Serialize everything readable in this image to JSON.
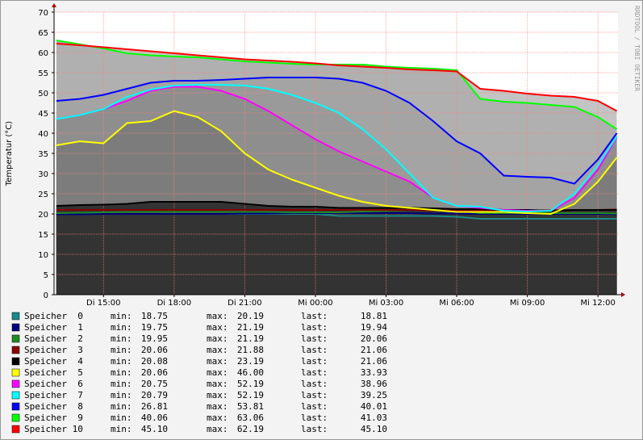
{
  "chart_data": {
    "type": "line",
    "y_label": "Temperatur (°C)",
    "watermark": "RRDTOOL / TOBI OETIKER",
    "x": [
      13,
      14,
      15,
      16,
      17,
      18,
      19,
      20,
      21,
      22,
      23,
      24,
      25,
      26,
      27,
      28,
      29,
      30,
      31,
      32,
      33,
      34,
      35,
      36,
      36.8
    ],
    "xlim": [
      12.9,
      36.85
    ],
    "xticks": [
      {
        "value": 15,
        "label": "Di 15:00"
      },
      {
        "value": 18,
        "label": "Di 18:00"
      },
      {
        "value": 21,
        "label": "Di 21:00"
      },
      {
        "value": 24,
        "label": "Mi 00:00"
      },
      {
        "value": 27,
        "label": "Mi 03:00"
      },
      {
        "value": 30,
        "label": "Mi 06:00"
      },
      {
        "value": 33,
        "label": "Mi 09:00"
      },
      {
        "value": 36,
        "label": "Mi 12:00"
      }
    ],
    "ylim": [
      0,
      70
    ],
    "yticks": [
      0,
      5,
      10,
      15,
      20,
      25,
      30,
      35,
      40,
      45,
      50,
      55,
      60,
      65,
      70
    ],
    "grid": true,
    "legend_labels": {
      "min": "min:",
      "max": "max:",
      "last": "last:"
    },
    "series": [
      {
        "name": "Speicher  0",
        "color": "#1a8a8a",
        "fill": "#333333",
        "min": 18.75,
        "max": 20.19,
        "last": 18.81,
        "values": [
          20,
          20,
          20,
          20,
          20,
          20,
          20,
          20,
          20,
          20,
          20,
          20,
          19.5,
          19.5,
          19.5,
          19.5,
          19.5,
          19.3,
          18.8,
          18.8,
          18.8,
          18.8,
          18.8,
          18.8,
          18.8
        ]
      },
      {
        "name": "Speicher  1",
        "color": "#000080",
        "fill": "#333333",
        "min": 19.75,
        "max": 21.19,
        "last": 19.94,
        "values": [
          19.9,
          19.9,
          20,
          20,
          20,
          20,
          20,
          20,
          20.1,
          20.1,
          20.2,
          20.2,
          20.2,
          20.2,
          20.2,
          20.2,
          20.1,
          20.1,
          20,
          20,
          20,
          20,
          20,
          20,
          19.9
        ]
      },
      {
        "name": "Speicher  2",
        "color": "#228b22",
        "fill": "#333333",
        "min": 19.95,
        "max": 21.19,
        "last": 20.06,
        "values": [
          20.2,
          20.3,
          20.4,
          20.5,
          20.5,
          20.5,
          20.5,
          20.5,
          20.5,
          20.5,
          20.4,
          20.4,
          20.4,
          20.6,
          20.8,
          21,
          21.2,
          20.8,
          20.2,
          20.2,
          20.2,
          20.2,
          20.2,
          20.2,
          20.1
        ]
      },
      {
        "name": "Speicher  3",
        "color": "#8b0000",
        "fill": "#333333",
        "min": 20.06,
        "max": 21.88,
        "last": 21.06,
        "values": [
          21,
          21,
          21,
          21,
          21,
          21,
          21,
          21,
          21,
          21,
          21,
          21,
          21,
          21,
          21,
          21,
          20.9,
          20.9,
          20.9,
          20.9,
          20.9,
          20.9,
          21,
          21,
          21.1
        ]
      },
      {
        "name": "Speicher  4",
        "color": "#000000",
        "fill": "#333333",
        "min": 20.08,
        "max": 23.19,
        "last": 21.06,
        "values": [
          22,
          22.2,
          22.3,
          22.5,
          23,
          23,
          23,
          23,
          22.5,
          22,
          21.8,
          21.8,
          21.5,
          21.5,
          21.5,
          21.5,
          21.4,
          21.2,
          21.2,
          21,
          21,
          20.8,
          21,
          21,
          21
        ]
      },
      {
        "name": "Speicher  5",
        "color": "#ffff00",
        "fill": "#7c7c7c",
        "min": 20.06,
        "max": {
          "value": 46,
          "label": "46.00"
        },
        "last": 33.93,
        "values": [
          37,
          38,
          37.5,
          42.5,
          43,
          45.5,
          44,
          40.5,
          35,
          31,
          28.5,
          26.5,
          24.5,
          23,
          22,
          21.5,
          21,
          20.5,
          20.5,
          20.5,
          20.2,
          20,
          22.5,
          28,
          34
        ]
      },
      {
        "name": "Speicher  6",
        "color": "#ff00ff",
        "fill": "#8e8e8e",
        "min": 20.75,
        "max": 52.19,
        "last": 38.96,
        "values": [
          43.5,
          44.5,
          46,
          48,
          50.5,
          51.5,
          51.5,
          50.5,
          48.5,
          45.5,
          42,
          38.5,
          35.5,
          33,
          30.5,
          28,
          24,
          22,
          21.5,
          21,
          20.8,
          20.8,
          24,
          31,
          39
        ]
      },
      {
        "name": "Speicher  7",
        "color": "#00ffff",
        "fill": "#9a9a9a",
        "min": 20.79,
        "max": 52.19,
        "last": 39.25,
        "values": [
          43.5,
          44.5,
          46,
          49,
          50.8,
          51.8,
          52,
          52,
          51.8,
          51,
          49.5,
          47.5,
          45,
          41,
          36,
          30,
          24,
          22,
          21.8,
          20.8,
          20.6,
          20.8,
          25,
          32,
          39.2
        ]
      },
      {
        "name": "Speicher  8",
        "color": "#0000ff",
        "fill": "#a4a4a4",
        "min": 26.81,
        "max": 53.81,
        "last": 40.01,
        "values": [
          48,
          48.5,
          49.5,
          51,
          52.5,
          53,
          53,
          53.2,
          53.5,
          53.8,
          53.8,
          53.8,
          53.5,
          52.5,
          50.5,
          47.5,
          43,
          38,
          35,
          29.5,
          29.2,
          29,
          27.5,
          33.5,
          40
        ]
      },
      {
        "name": "Speicher  9",
        "color": "#00ff00",
        "fill": "#b0b0b0",
        "min": 40.06,
        "max": 63.06,
        "last": 41.03,
        "values": [
          63,
          62,
          61,
          59.8,
          59.3,
          59,
          58.8,
          58.3,
          57.8,
          57.5,
          57.2,
          57,
          57,
          57,
          56.5,
          56.2,
          56,
          55.6,
          48.5,
          47.8,
          47.5,
          47,
          46.5,
          44,
          41
        ]
      },
      {
        "name": "Speicher 10",
        "color": "#ff0000",
        "fill": "#c4c4c4",
        "min": {
          "value": 45.1,
          "label": "45.10"
        },
        "max": 62.19,
        "last": {
          "value": 45.1,
          "label": "45.10"
        },
        "values": [
          62.2,
          61.8,
          61.3,
          60.8,
          60.3,
          59.8,
          59.3,
          58.8,
          58.3,
          58,
          57.7,
          57.3,
          56.8,
          56.5,
          56.2,
          55.8,
          55.6,
          55.3,
          51,
          50.5,
          49.8,
          49.3,
          49,
          48,
          45.5
        ]
      }
    ]
  }
}
